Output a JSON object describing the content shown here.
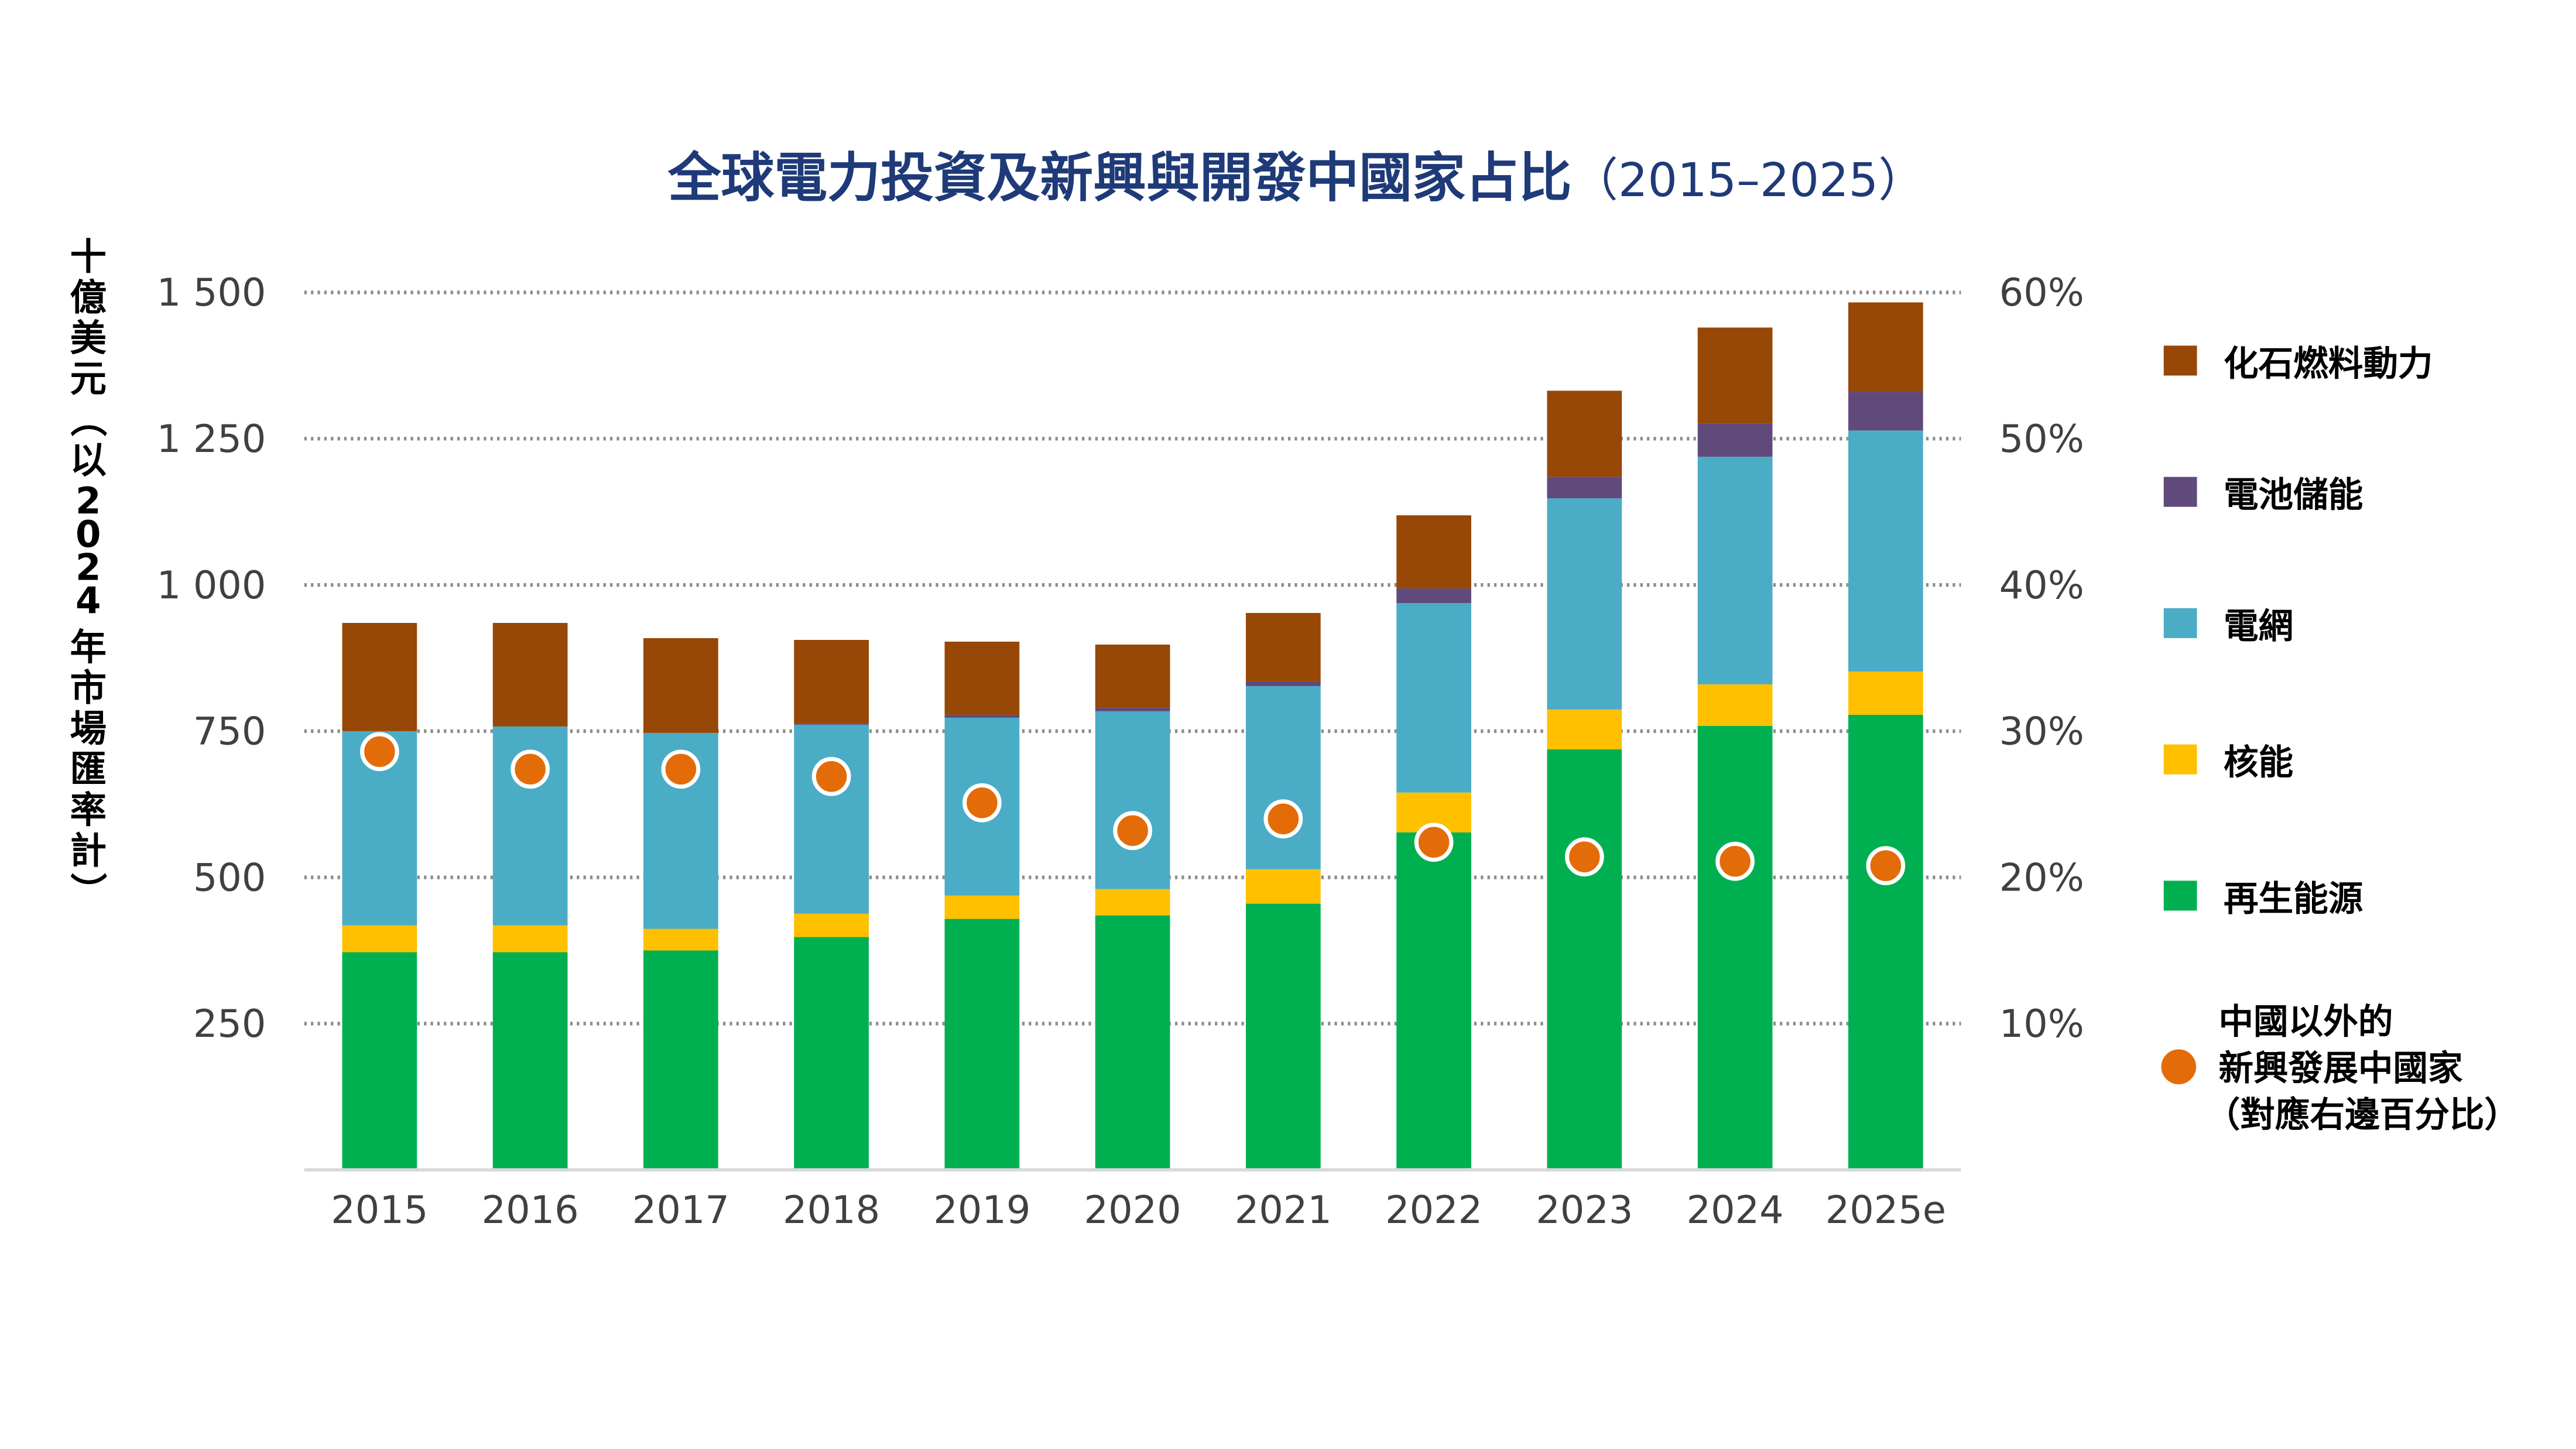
{
  "chart_data": {
    "type": "bar",
    "stacked": true,
    "title": "全球電力投資及新興與開發中國家占比",
    "title_suffix": "（2015–2025）",
    "ylabel": "十億美元（以2024 年市場匯率計）",
    "ylim": [
      0,
      1500
    ],
    "y_ticks": [
      "250",
      "500",
      "750",
      "1 000",
      "1 250",
      "1 500"
    ],
    "y2lim": [
      0,
      60
    ],
    "y2_ticks": [
      "10%",
      "20%",
      "30%",
      "40%",
      "50%",
      "60%"
    ],
    "grid": "dotted horizontal",
    "legend_position": "right",
    "categories": [
      "2015",
      "2016",
      "2017",
      "2018",
      "2019",
      "2020",
      "2021",
      "2022",
      "2023",
      "2024",
      "2025e"
    ],
    "series": [
      {
        "name": "再生能源",
        "color": "#00b050",
        "values": [
          372,
          372,
          375,
          398,
          429,
          435,
          455,
          577,
          719,
          759,
          778
        ]
      },
      {
        "name": "核能",
        "color": "#ffc000",
        "values": [
          46,
          46,
          37,
          40,
          40,
          45,
          59,
          68,
          68,
          71,
          74
        ]
      },
      {
        "name": "電網",
        "color": "#4bacc6",
        "values": [
          332,
          340,
          335,
          323,
          304,
          304,
          313,
          324,
          361,
          389,
          412
        ]
      },
      {
        "name": "電池儲能",
        "color": "#604a7b",
        "values": [
          0,
          0,
          0,
          2,
          5,
          6,
          8,
          25,
          37,
          57,
          66
        ]
      },
      {
        "name": "化石燃料動力",
        "color": "#974706",
        "values": [
          185,
          177,
          162,
          143,
          125,
          108,
          117,
          125,
          147,
          164,
          153
        ]
      }
    ],
    "line_series": {
      "name_lines": [
        "中國以外的",
        "新興發展中國家",
        "（對應右邊百分比）"
      ],
      "color": "#e36c09",
      "axis": "right",
      "unit": "%",
      "values": [
        28.6,
        27.4,
        27.4,
        26.9,
        25.1,
        23.2,
        24.0,
        22.4,
        21.4,
        21.1,
        20.8
      ]
    }
  }
}
